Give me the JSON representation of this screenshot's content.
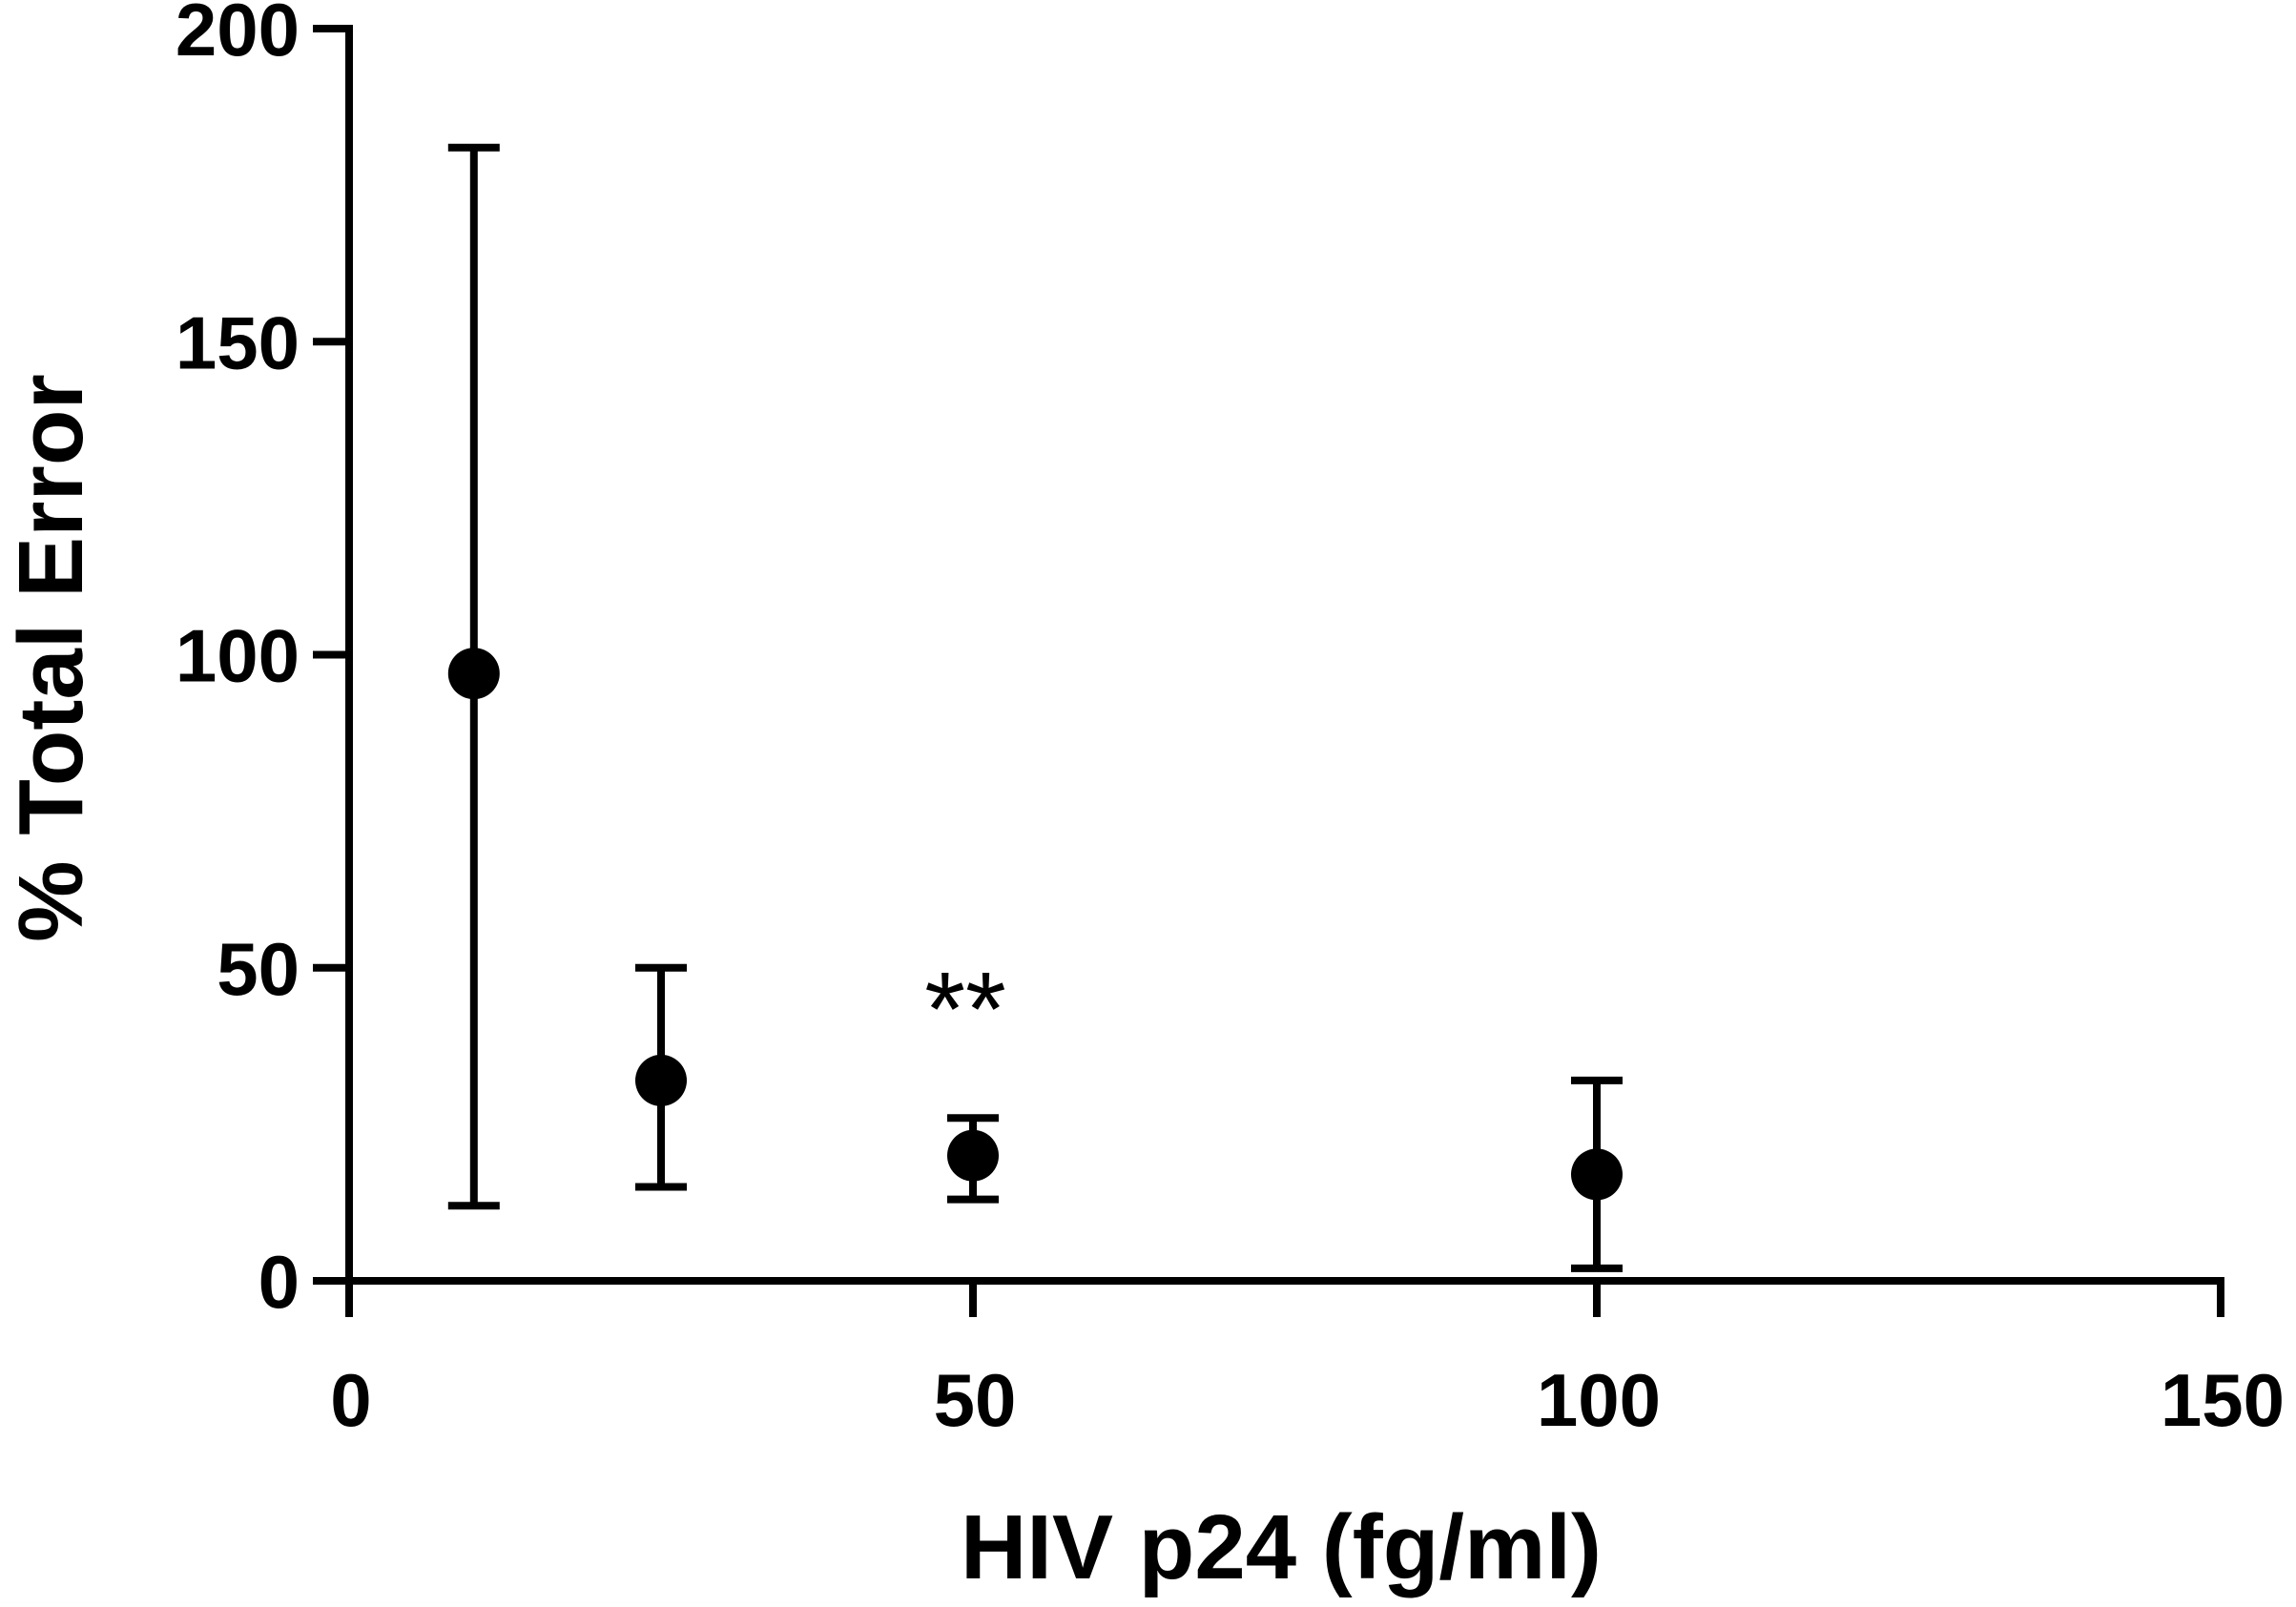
{
  "chart_data": {
    "type": "scatter",
    "title": "",
    "xlabel": "HIV p24 (fg/ml)",
    "ylabel": "% Total Error",
    "xlim": [
      0,
      150
    ],
    "ylim": [
      0,
      200
    ],
    "x_ticks": [
      "0",
      "50",
      "100",
      "150"
    ],
    "y_ticks": [
      "0",
      "50",
      "100",
      "150",
      "200"
    ],
    "grid": false,
    "legend": "none",
    "series": [
      {
        "x": [
          10,
          25,
          50,
          100
        ],
        "y": [
          97,
          32,
          20,
          17
        ],
        "error_low": [
          12,
          15,
          13,
          2
        ],
        "error_high": [
          181,
          50,
          26,
          32
        ],
        "marker": "circle",
        "color": "#000000"
      }
    ],
    "annotations": [
      {
        "text": "**",
        "x": 50,
        "y": 46
      }
    ]
  }
}
